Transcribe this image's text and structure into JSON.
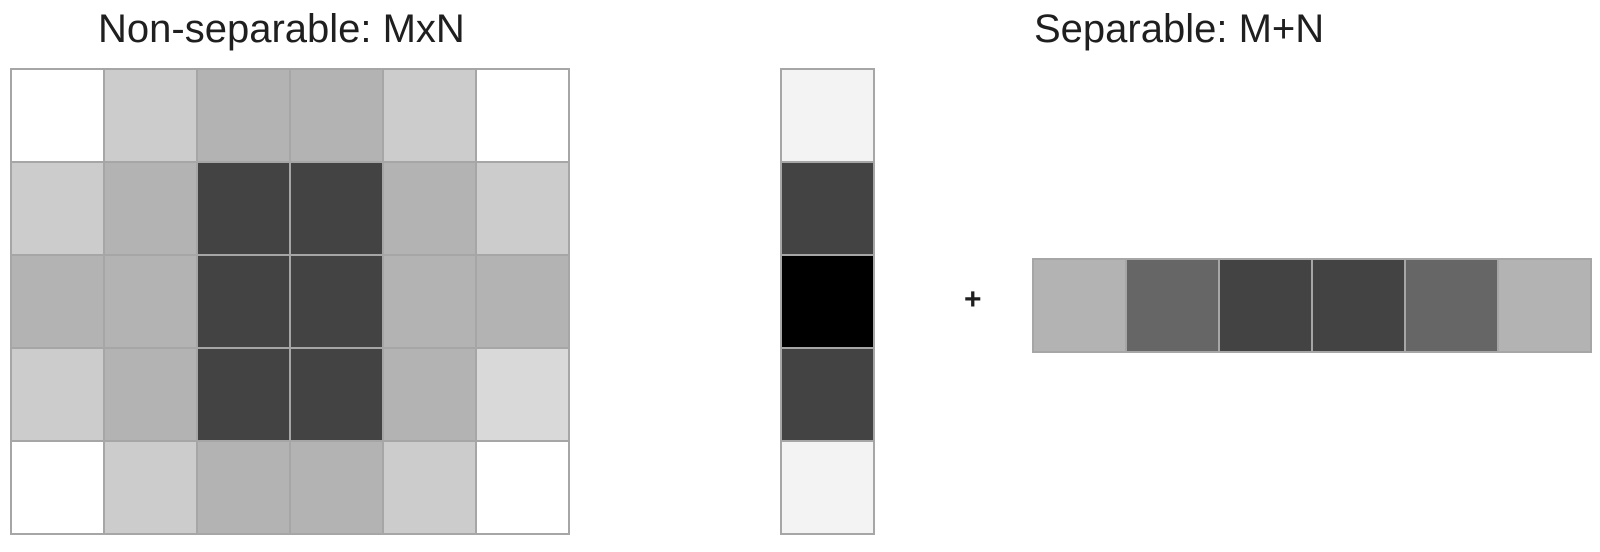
{
  "titles": {
    "left": "Non-separable: MxN",
    "right": "Separable: M+N"
  },
  "operator": "+",
  "colors": {
    "border": "#a6a6a6",
    "background": "#ffffff"
  },
  "matrix": [
    [
      "#ffffff",
      "#cccccc",
      "#b3b3b3",
      "#b3b3b3",
      "#cccccc",
      "#ffffff"
    ],
    [
      "#cccccc",
      "#b3b3b3",
      "#434343",
      "#434343",
      "#b3b3b3",
      "#cccccc"
    ],
    [
      "#b3b3b3",
      "#b3b3b3",
      "#434343",
      "#434343",
      "#b3b3b3",
      "#b3b3b3"
    ],
    [
      "#cccccc",
      "#b3b3b3",
      "#434343",
      "#434343",
      "#b3b3b3",
      "#d9d9d9"
    ],
    [
      "#ffffff",
      "#cccccc",
      "#b3b3b3",
      "#b3b3b3",
      "#cccccc",
      "#ffffff"
    ]
  ],
  "column_vector": [
    "#f3f3f3",
    "#434343",
    "#000000",
    "#434343",
    "#f3f3f3"
  ],
  "row_vector": [
    "#b3b3b3",
    "#666666",
    "#434343",
    "#434343",
    "#666666",
    "#b3b3b3"
  ]
}
